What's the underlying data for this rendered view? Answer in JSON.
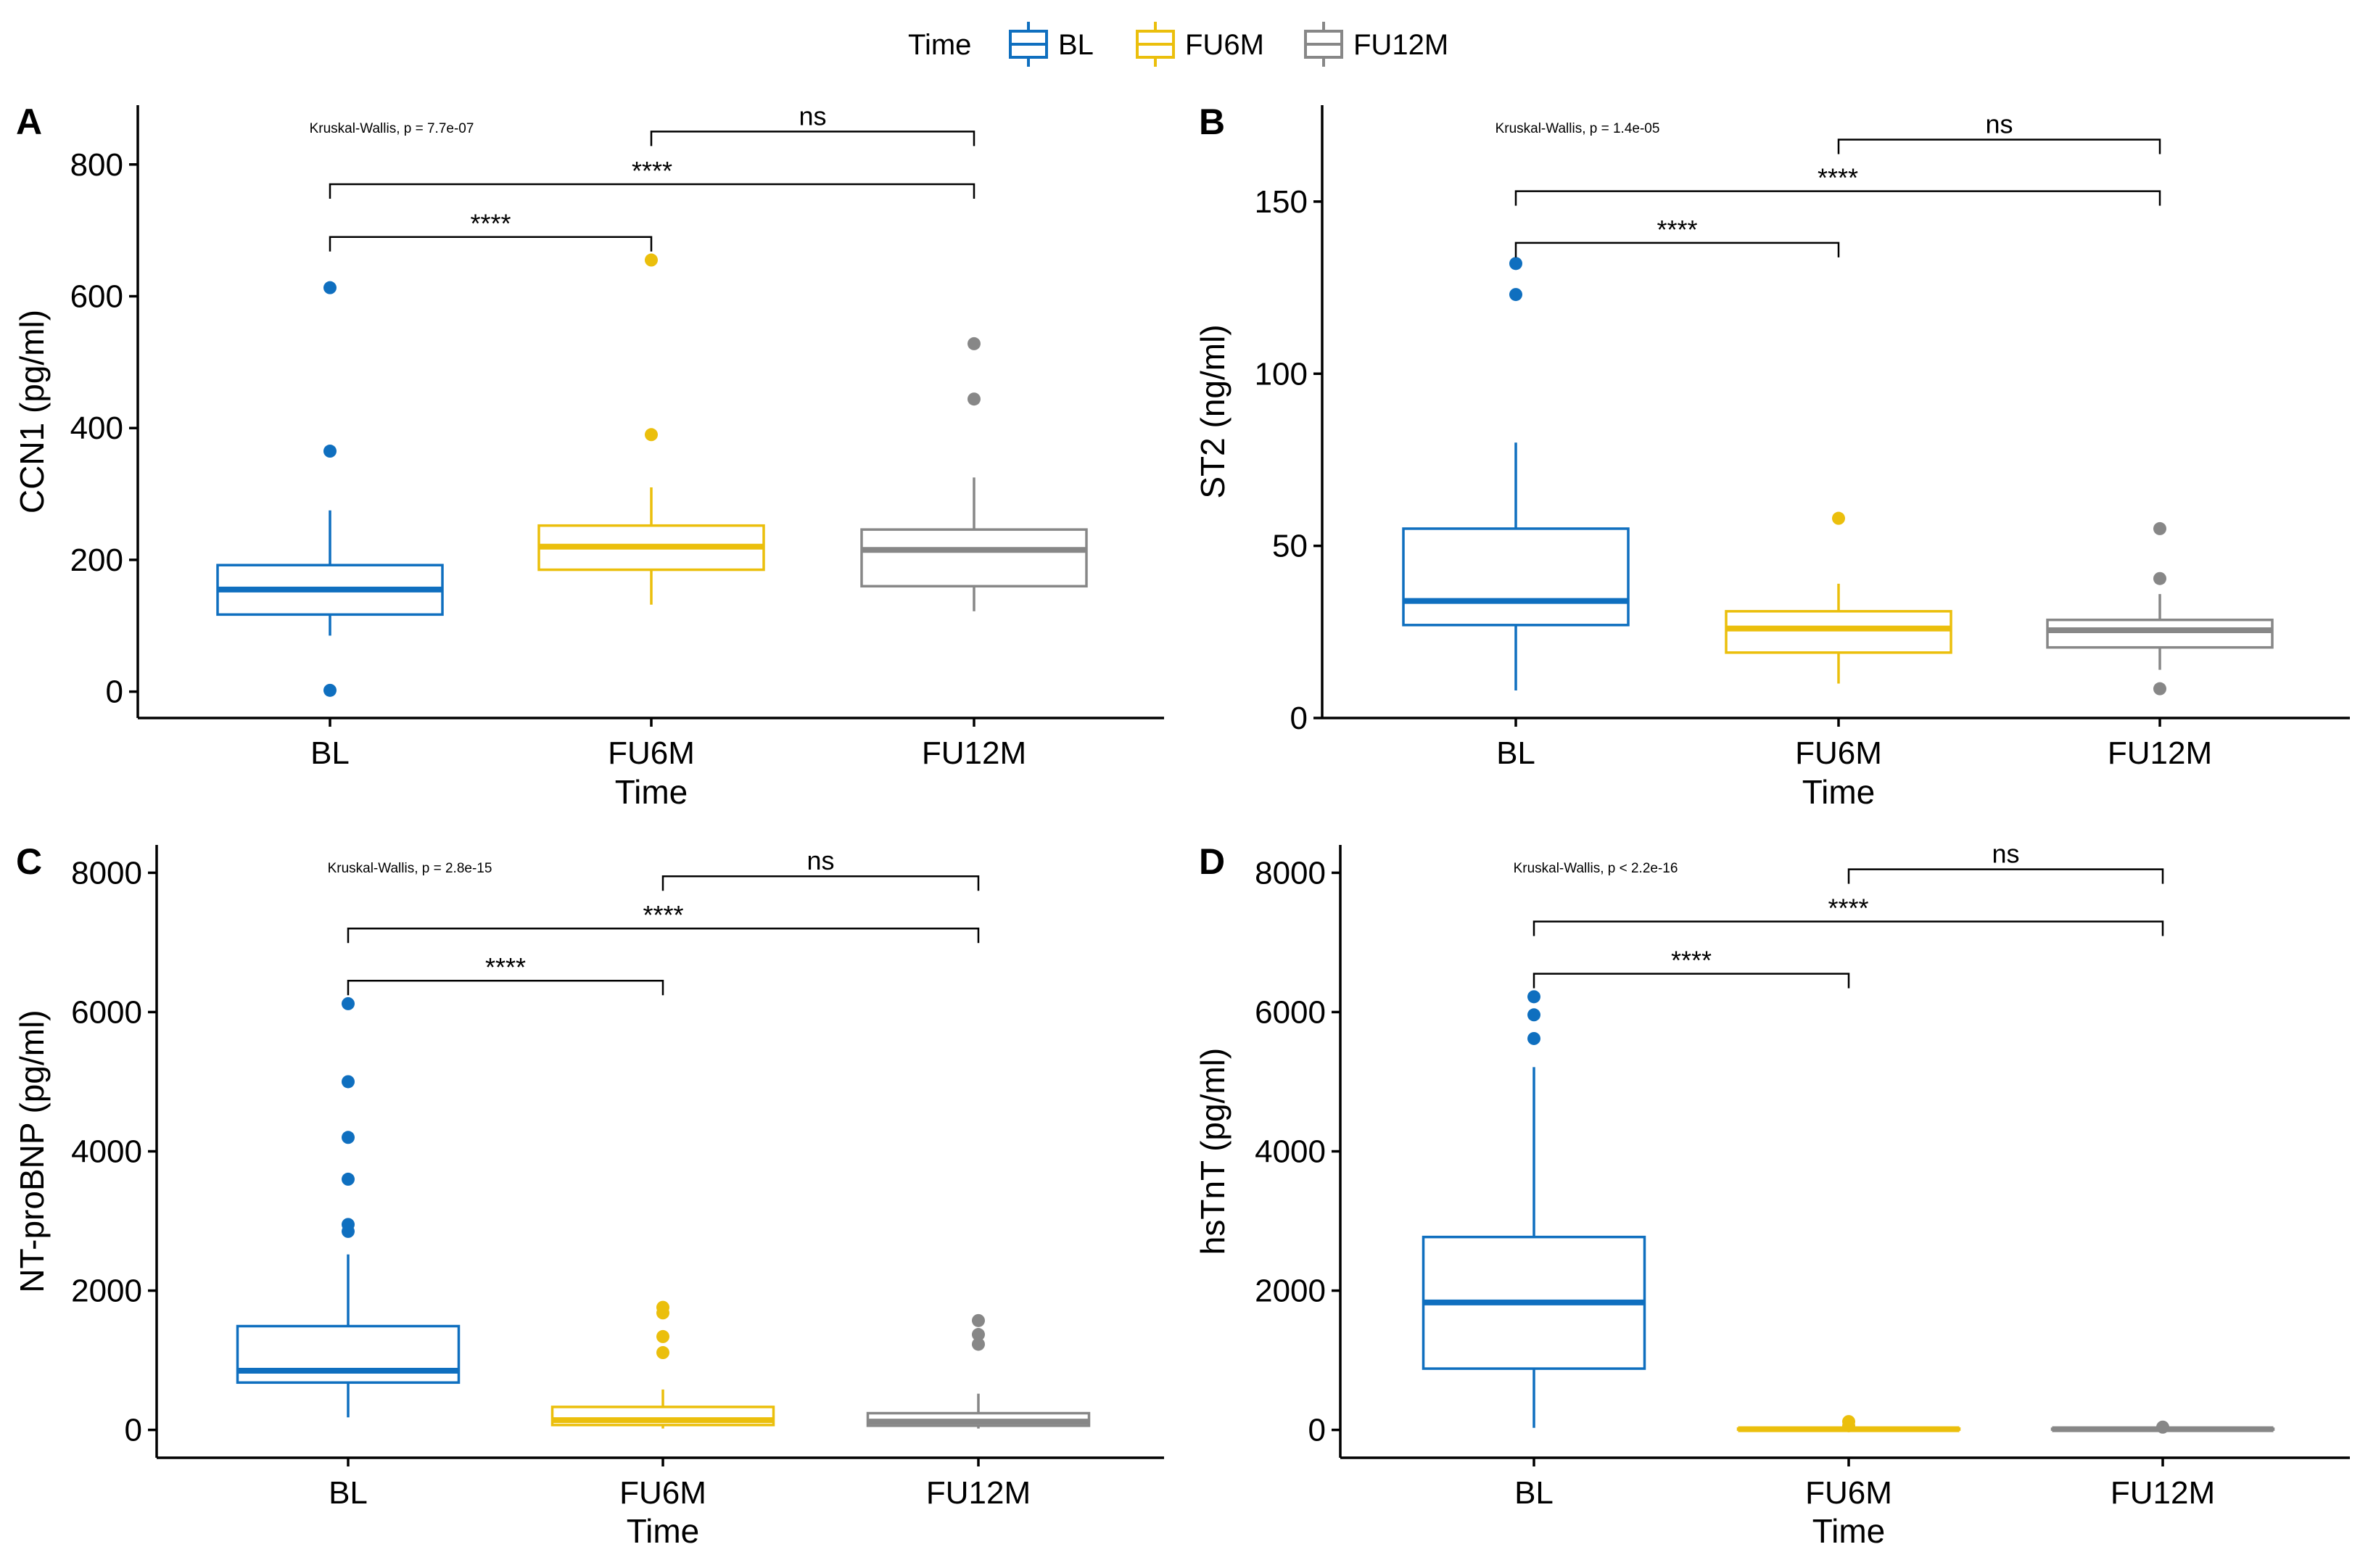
{
  "legend": {
    "title": "Time",
    "entries": [
      {
        "label": "BL",
        "color": "#0F6FBF"
      },
      {
        "label": "FU6M",
        "color": "#EBBF0C"
      },
      {
        "label": "FU12M",
        "color": "#878787"
      }
    ]
  },
  "chart_data": [
    {
      "type": "box",
      "panel": "A",
      "ylabel": "CCN1 (pg/ml)",
      "xlabel": "Time",
      "categories": [
        "BL",
        "FU6M",
        "FU12M"
      ],
      "ylim": [
        -40,
        890
      ],
      "yticks": [
        0,
        200,
        400,
        600,
        800
      ],
      "test_label": "Kruskal-Wallis, p = 7.7e-07",
      "boxes": [
        {
          "group": "BL",
          "whisker_low": 85,
          "q1": 117,
          "median": 155,
          "q3": 192,
          "whisker_high": 275,
          "outliers": [
            613,
            365,
            2
          ]
        },
        {
          "group": "FU6M",
          "whisker_low": 132,
          "q1": 185,
          "median": 220,
          "q3": 252,
          "whisker_high": 310,
          "outliers": [
            655,
            390
          ]
        },
        {
          "group": "FU12M",
          "whisker_low": 122,
          "q1": 160,
          "median": 215,
          "q3": 246,
          "whisker_high": 325,
          "outliers": [
            528,
            444
          ]
        }
      ],
      "comparisons": [
        {
          "from": "BL",
          "to": "FU6M",
          "label": "****",
          "y": 690
        },
        {
          "from": "BL",
          "to": "FU12M",
          "label": "****",
          "y": 770
        },
        {
          "from": "FU6M",
          "to": "FU12M",
          "label": "ns",
          "y": 850
        }
      ]
    },
    {
      "type": "box",
      "panel": "B",
      "ylabel": "ST2 (ng/ml)",
      "xlabel": "Time",
      "categories": [
        "BL",
        "FU6M",
        "FU12M"
      ],
      "ylim": [
        0,
        178
      ],
      "yticks": [
        0,
        50,
        100,
        150
      ],
      "test_label": "Kruskal-Wallis, p = 1.4e-05",
      "boxes": [
        {
          "group": "BL",
          "whisker_low": 8,
          "q1": 27,
          "median": 34,
          "q3": 55,
          "whisker_high": 80,
          "outliers": [
            132,
            123
          ]
        },
        {
          "group": "FU6M",
          "whisker_low": 10,
          "q1": 19,
          "median": 26,
          "q3": 31,
          "whisker_high": 39,
          "outliers": [
            58
          ]
        },
        {
          "group": "FU12M",
          "whisker_low": 14,
          "q1": 20.5,
          "median": 25.5,
          "q3": 28.5,
          "whisker_high": 36,
          "outliers": [
            55,
            40.5,
            8.5
          ]
        }
      ],
      "comparisons": [
        {
          "from": "BL",
          "to": "FU6M",
          "label": "****",
          "y": 138
        },
        {
          "from": "BL",
          "to": "FU12M",
          "label": "****",
          "y": 153
        },
        {
          "from": "FU6M",
          "to": "FU12M",
          "label": "ns",
          "y": 168
        }
      ]
    },
    {
      "type": "box",
      "panel": "C",
      "ylabel": "NT-proBNP (pg/ml)",
      "xlabel": "Time",
      "categories": [
        "BL",
        "FU6M",
        "FU12M"
      ],
      "ylim": [
        -400,
        8400
      ],
      "yticks": [
        0,
        2000,
        4000,
        6000,
        8000
      ],
      "test_label": "Kruskal-Wallis, p = 2.8e-15",
      "boxes": [
        {
          "group": "BL",
          "whisker_low": 180,
          "q1": 680,
          "median": 850,
          "q3": 1490,
          "whisker_high": 2520,
          "outliers": [
            6120,
            5000,
            4200,
            3600,
            2950,
            2850
          ]
        },
        {
          "group": "FU6M",
          "whisker_low": 20,
          "q1": 70,
          "median": 140,
          "q3": 330,
          "whisker_high": 580,
          "outliers": [
            1760,
            1680,
            1340,
            1110
          ]
        },
        {
          "group": "FU12M",
          "whisker_low": 20,
          "q1": 60,
          "median": 120,
          "q3": 240,
          "whisker_high": 520,
          "outliers": [
            1570,
            1370,
            1230
          ]
        }
      ],
      "comparisons": [
        {
          "from": "BL",
          "to": "FU6M",
          "label": "****",
          "y": 6450
        },
        {
          "from": "BL",
          "to": "FU12M",
          "label": "****",
          "y": 7200
        },
        {
          "from": "FU6M",
          "to": "FU12M",
          "label": "ns",
          "y": 7950
        }
      ]
    },
    {
      "type": "box",
      "panel": "D",
      "ylabel": "hsTnT (pg/ml)",
      "xlabel": "Time",
      "categories": [
        "BL",
        "FU6M",
        "FU12M"
      ],
      "ylim": [
        -400,
        8400
      ],
      "yticks": [
        0,
        2000,
        4000,
        6000,
        8000
      ],
      "test_label": "Kruskal-Wallis, p < 2.2e-16",
      "boxes": [
        {
          "group": "BL",
          "whisker_low": 30,
          "q1": 880,
          "median": 1830,
          "q3": 2770,
          "whisker_high": 5210,
          "outliers": [
            6220,
            5960,
            5620
          ]
        },
        {
          "group": "FU6M",
          "whisker_low": 2,
          "q1": 5,
          "median": 10,
          "q3": 18,
          "whisker_high": 40,
          "outliers": [
            120,
            60
          ]
        },
        {
          "group": "FU12M",
          "whisker_low": 2,
          "q1": 5,
          "median": 10,
          "q3": 16,
          "whisker_high": 30,
          "outliers": [
            40
          ]
        }
      ],
      "comparisons": [
        {
          "from": "BL",
          "to": "FU6M",
          "label": "****",
          "y": 6550
        },
        {
          "from": "BL",
          "to": "FU12M",
          "label": "****",
          "y": 7300
        },
        {
          "from": "FU6M",
          "to": "FU12M",
          "label": "ns",
          "y": 8050
        }
      ]
    }
  ]
}
